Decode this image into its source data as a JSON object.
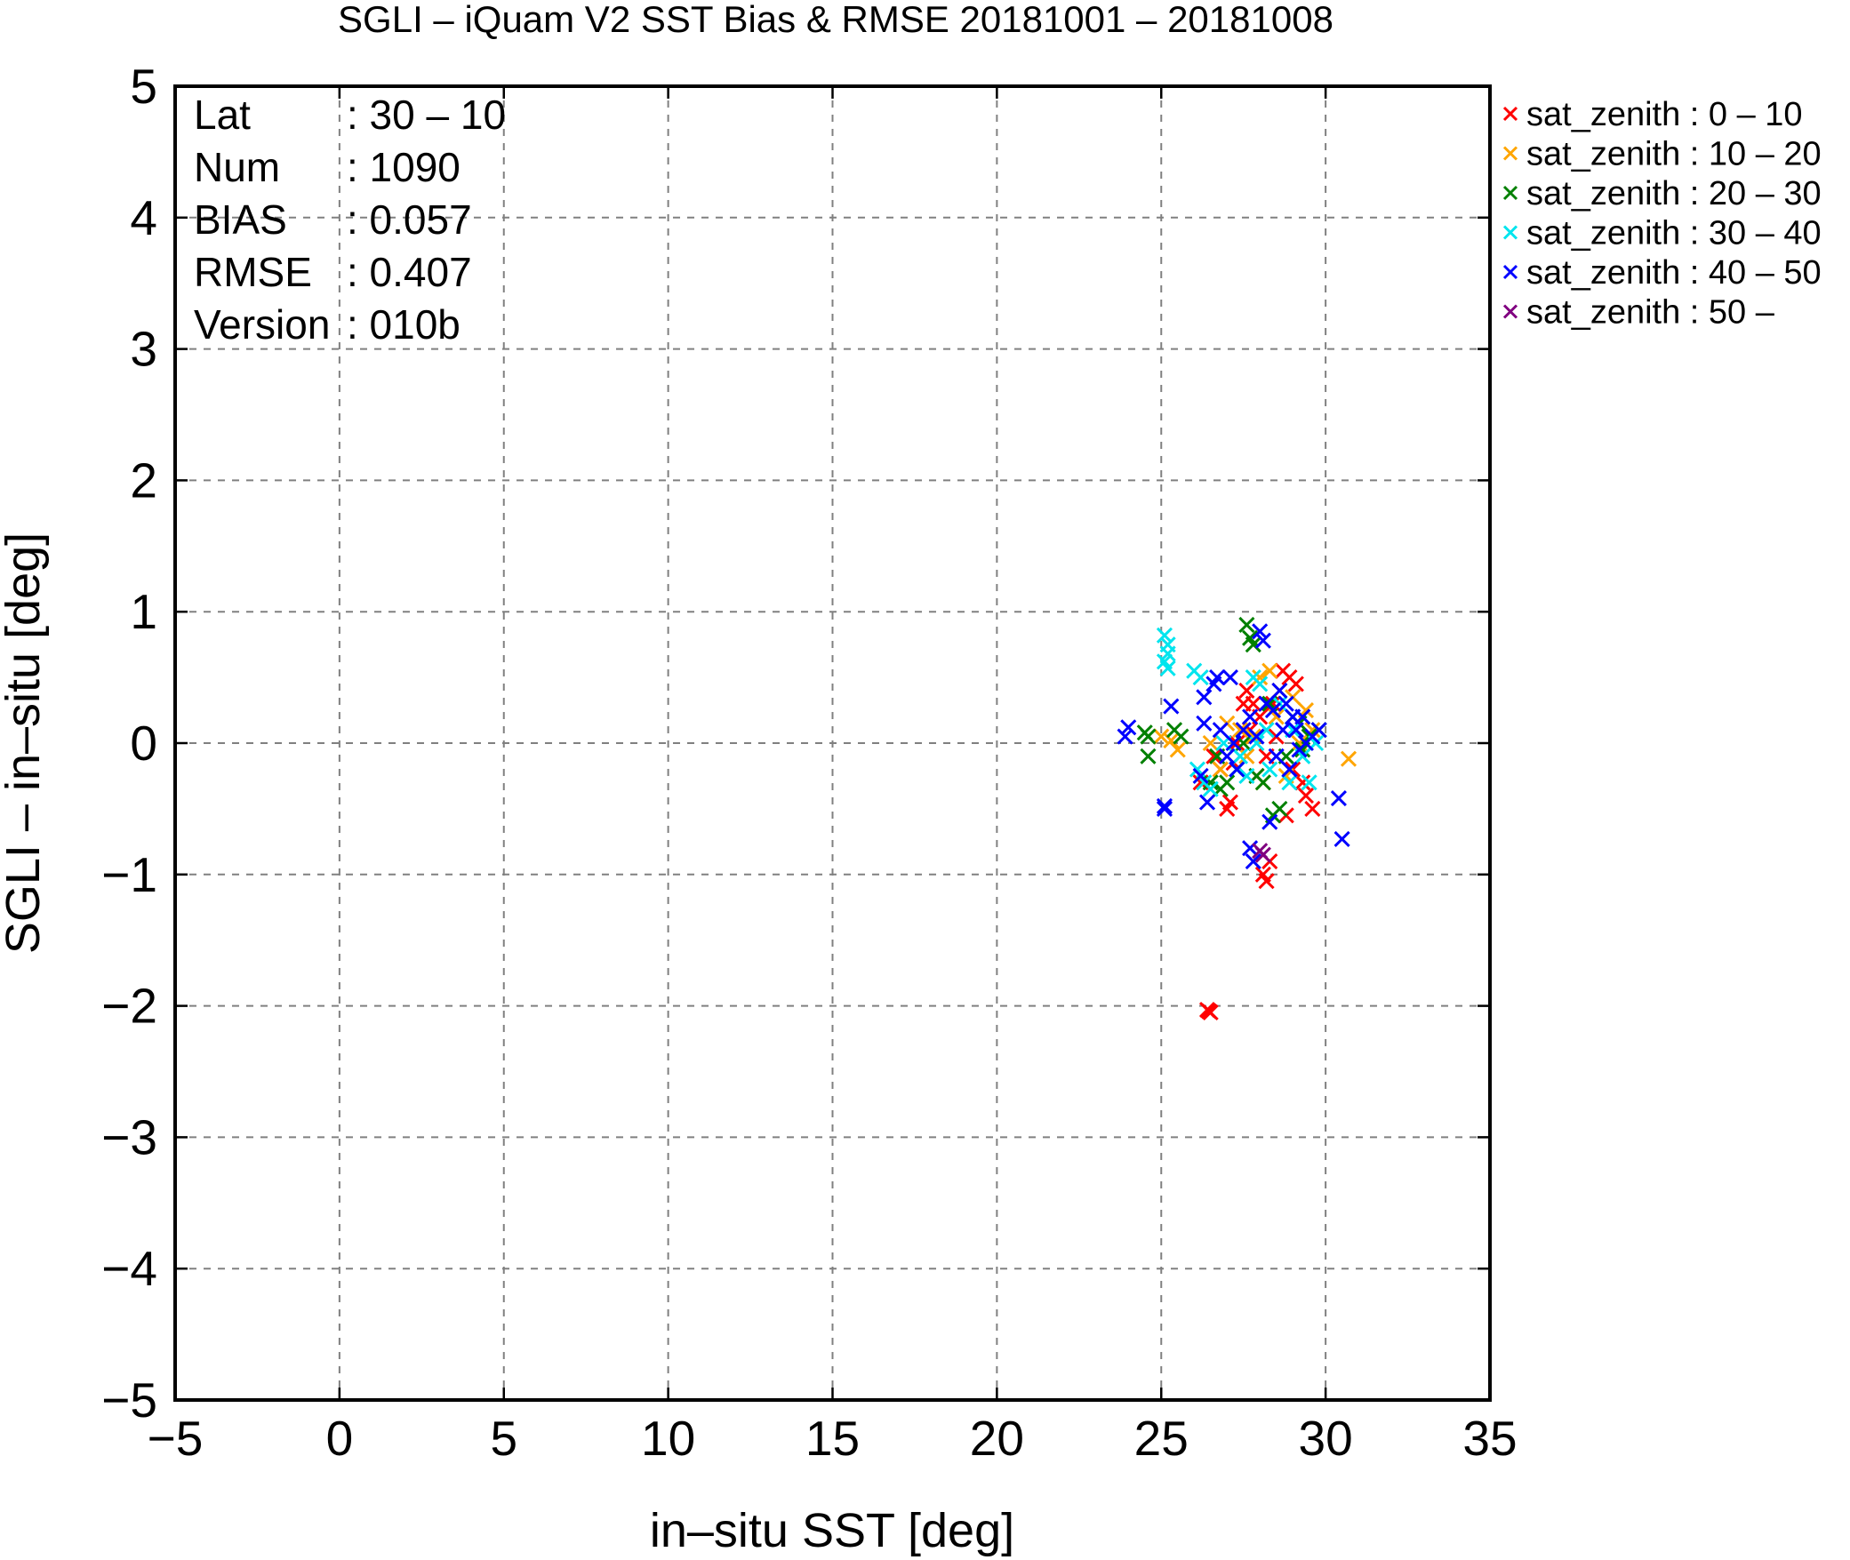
{
  "chart_data": {
    "type": "scatter",
    "title": "SGLI – iQuam V2 SST Bias & RMSE 20181001 – 20181008",
    "xlabel": "in–situ SST [deg]",
    "ylabel": "SGLI – in–situ [deg]",
    "xlim": [
      -5,
      35
    ],
    "ylim": [
      -5,
      5
    ],
    "xticks": [
      -5,
      0,
      5,
      10,
      15,
      20,
      25,
      30,
      35
    ],
    "yticks": [
      -5,
      -4,
      -3,
      -2,
      -1,
      0,
      1,
      2,
      3,
      4,
      5
    ],
    "xtick_labels": [
      "−5",
      "0",
      "5",
      "10",
      "15",
      "20",
      "25",
      "30",
      "35"
    ],
    "ytick_labels": [
      "−5",
      "−4",
      "−3",
      "−2",
      "−1",
      "0",
      "1",
      "2",
      "3",
      "4",
      "5"
    ],
    "grid": true,
    "legend_position": "outside-top-right",
    "stats": [
      {
        "label": "Lat",
        "value": ": 30 – 10"
      },
      {
        "label": "Num",
        "value": ": 1090"
      },
      {
        "label": "BIAS",
        "value": ": 0.057"
      },
      {
        "label": "RMSE",
        "value": ": 0.407"
      },
      {
        "label": "Version",
        "value": ": 010b"
      }
    ],
    "series": [
      {
        "name": "sat_zenith :  0 – 10",
        "color": "#ff0000",
        "points": [
          [
            26.5,
            -2.05
          ],
          [
            26.4,
            -2.03
          ],
          [
            26.45,
            -2.04
          ],
          [
            28.2,
            -1.05
          ],
          [
            28.1,
            -1.0
          ],
          [
            28.3,
            -0.9
          ],
          [
            27.0,
            -0.5
          ],
          [
            27.1,
            -0.45
          ],
          [
            28.8,
            -0.55
          ],
          [
            29.6,
            -0.5
          ],
          [
            29.4,
            -0.4
          ],
          [
            27.5,
            0.3
          ],
          [
            27.6,
            0.4
          ],
          [
            27.8,
            0.3
          ],
          [
            28.0,
            0.2
          ],
          [
            28.7,
            0.55
          ],
          [
            28.9,
            0.5
          ],
          [
            29.1,
            0.45
          ],
          [
            26.8,
            -0.2
          ],
          [
            27.3,
            0.0
          ],
          [
            27.7,
            0.1
          ],
          [
            28.2,
            -0.1
          ],
          [
            28.5,
            0.05
          ],
          [
            29.0,
            -0.2
          ],
          [
            29.3,
            -0.3
          ],
          [
            26.6,
            -0.1
          ],
          [
            27.9,
            -0.25
          ],
          [
            28.4,
            0.3
          ],
          [
            26.2,
            -0.3
          ],
          [
            27.2,
            -0.15
          ]
        ]
      },
      {
        "name": "sat_zenith : 10 – 20",
        "color": "#ffa500",
        "points": [
          [
            30.7,
            -0.12
          ],
          [
            25.0,
            0.05
          ],
          [
            25.3,
            0.02
          ],
          [
            25.5,
            -0.05
          ],
          [
            28.0,
            0.5
          ],
          [
            28.3,
            0.55
          ],
          [
            28.6,
            0.4
          ],
          [
            29.0,
            0.35
          ],
          [
            29.4,
            0.25
          ],
          [
            27.4,
            0.1
          ],
          [
            27.0,
            0.15
          ],
          [
            26.8,
            -0.2
          ],
          [
            28.1,
            -0.3
          ],
          [
            28.8,
            -0.25
          ],
          [
            29.2,
            0.0
          ],
          [
            27.8,
            0.05
          ],
          [
            26.5,
            0.0
          ],
          [
            27.6,
            -0.1
          ],
          [
            28.5,
            0.2
          ],
          [
            29.6,
            0.1
          ]
        ]
      },
      {
        "name": "sat_zenith : 20 – 30",
        "color": "#008000",
        "points": [
          [
            24.6,
            0.05
          ],
          [
            24.6,
            -0.1
          ],
          [
            24.5,
            0.08
          ],
          [
            25.4,
            0.1
          ],
          [
            25.6,
            0.05
          ],
          [
            27.6,
            0.9
          ],
          [
            27.7,
            0.8
          ],
          [
            27.8,
            0.75
          ],
          [
            28.6,
            -0.5
          ],
          [
            28.4,
            -0.55
          ],
          [
            28.1,
            -0.3
          ],
          [
            27.9,
            -0.25
          ],
          [
            26.5,
            -0.3
          ],
          [
            26.8,
            -0.35
          ],
          [
            27.3,
            -0.2
          ],
          [
            29.0,
            0.2
          ],
          [
            29.2,
            0.15
          ],
          [
            29.5,
            0.05
          ],
          [
            29.8,
            0.1
          ],
          [
            28.8,
            -0.1
          ],
          [
            27.0,
            -0.3
          ],
          [
            26.7,
            -0.1
          ],
          [
            28.3,
            0.3
          ],
          [
            29.3,
            -0.05
          ],
          [
            27.5,
            0.0
          ]
        ]
      },
      {
        "name": "sat_zenith : 30 – 40",
        "color": "#00e5ee",
        "points": [
          [
            25.1,
            0.82
          ],
          [
            25.2,
            0.75
          ],
          [
            25.2,
            0.68
          ],
          [
            25.1,
            0.62
          ],
          [
            25.2,
            0.57
          ],
          [
            26.0,
            0.55
          ],
          [
            26.2,
            0.5
          ],
          [
            26.1,
            -0.2
          ],
          [
            26.3,
            -0.3
          ],
          [
            26.5,
            -0.35
          ],
          [
            27.3,
            -0.2
          ],
          [
            27.6,
            -0.25
          ],
          [
            28.3,
            -0.2
          ],
          [
            28.9,
            -0.3
          ],
          [
            29.5,
            -0.3
          ],
          [
            29.3,
            -0.1
          ],
          [
            29.0,
            0.1
          ],
          [
            28.6,
            0.3
          ],
          [
            28.0,
            0.45
          ],
          [
            27.8,
            0.5
          ],
          [
            27.9,
            0.0
          ],
          [
            28.2,
            0.1
          ],
          [
            29.7,
            0.0
          ],
          [
            26.9,
            0.0
          ],
          [
            27.4,
            -0.1
          ]
        ]
      },
      {
        "name": "sat_zenith : 40 – 50",
        "color": "#0000ff",
        "points": [
          [
            23.9,
            0.05
          ],
          [
            24.0,
            0.12
          ],
          [
            25.1,
            -0.48
          ],
          [
            25.1,
            -0.5
          ],
          [
            25.3,
            0.28
          ],
          [
            26.3,
            0.35
          ],
          [
            26.6,
            0.45
          ],
          [
            26.7,
            0.5
          ],
          [
            27.1,
            0.5
          ],
          [
            26.3,
            0.15
          ],
          [
            26.2,
            -0.25
          ],
          [
            26.4,
            -0.45
          ],
          [
            27.0,
            -0.1
          ],
          [
            27.2,
            0.0
          ],
          [
            27.5,
            0.1
          ],
          [
            27.7,
            0.2
          ],
          [
            28.0,
            0.85
          ],
          [
            28.1,
            0.78
          ],
          [
            28.2,
            0.3
          ],
          [
            28.4,
            0.25
          ],
          [
            28.6,
            0.4
          ],
          [
            28.8,
            0.3
          ],
          [
            29.0,
            0.2
          ],
          [
            29.1,
            0.1
          ],
          [
            29.2,
            -0.05
          ],
          [
            29.4,
            0.0
          ],
          [
            29.6,
            0.05
          ],
          [
            29.8,
            0.1
          ],
          [
            30.4,
            -0.42
          ],
          [
            30.5,
            -0.73
          ],
          [
            28.3,
            -0.6
          ],
          [
            27.7,
            -0.8
          ],
          [
            27.8,
            -0.9
          ],
          [
            28.9,
            -0.2
          ],
          [
            28.5,
            -0.1
          ],
          [
            27.9,
            0.05
          ],
          [
            27.3,
            -0.2
          ],
          [
            26.8,
            0.1
          ],
          [
            28.7,
            0.1
          ],
          [
            29.3,
            0.2
          ]
        ]
      },
      {
        "name": "sat_zenith : 50 –",
        "color": "#800080",
        "points": [
          [
            28.0,
            -0.82
          ],
          [
            28.1,
            -0.85
          ]
        ]
      }
    ]
  }
}
